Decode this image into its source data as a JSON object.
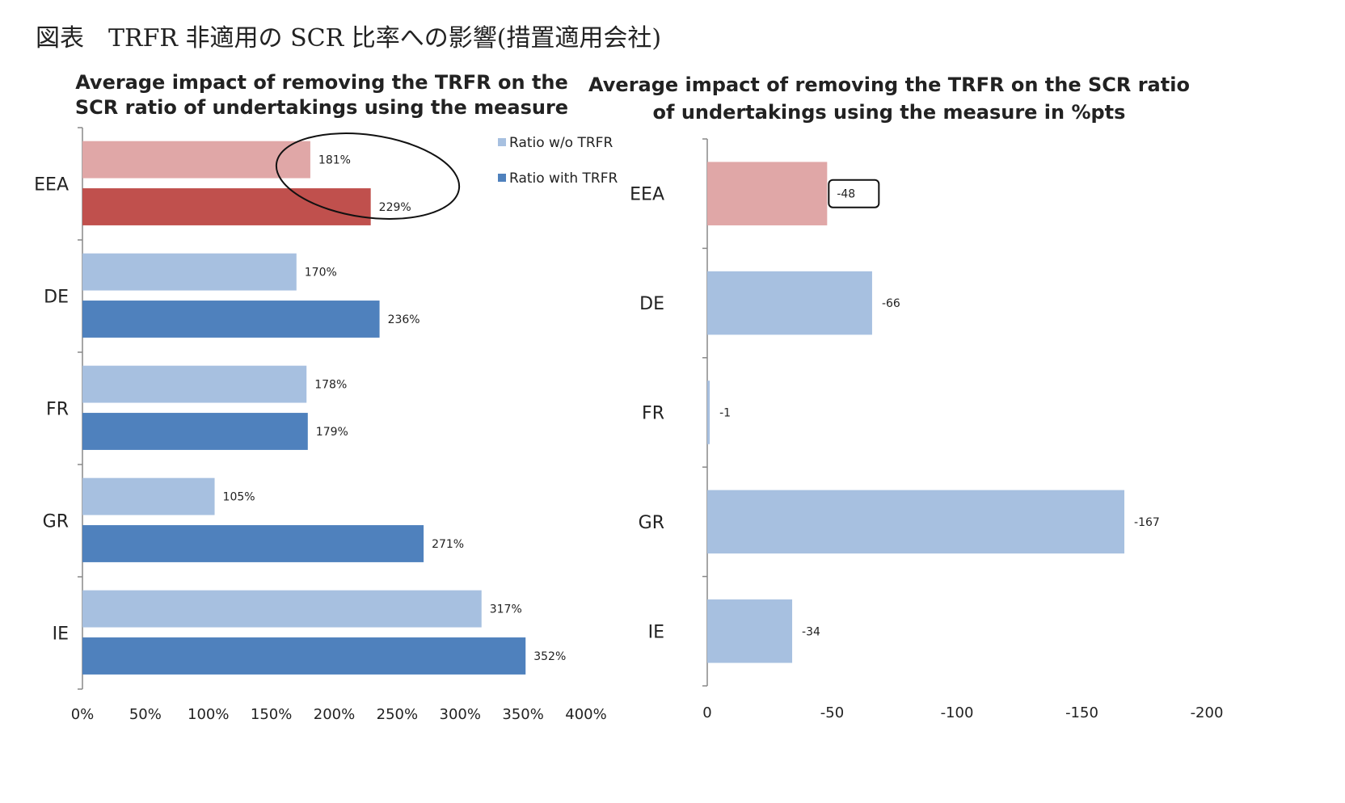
{
  "figure_title": "図表　TRFR 非適用の SCR 比率への影響(措置適用会社)",
  "chart_data": [
    {
      "type": "bar",
      "orientation": "horizontal",
      "title": [
        "Average impact of removing the TRFR on the",
        "SCR ratio of undertakings using the measure"
      ],
      "categories": [
        "EEA",
        "DE",
        "FR",
        "GR",
        "IE"
      ],
      "series": [
        {
          "name": "Ratio w/o TRFR",
          "values": [
            181,
            170,
            178,
            105,
            317
          ],
          "labels": [
            "181%",
            "170%",
            "178%",
            "105%",
            "317%"
          ],
          "color": "#a7c0e0",
          "eea_color": "#e0a7a7"
        },
        {
          "name": "Ratio with TRFR",
          "values": [
            229,
            236,
            179,
            271,
            352
          ],
          "labels": [
            "229%",
            "236%",
            "179%",
            "271%",
            "352%"
          ],
          "color": "#4f81bd",
          "eea_color": "#c0504d"
        }
      ],
      "xlim": [
        0,
        400
      ],
      "xticks": [
        "0%",
        "50%",
        "100%",
        "150%",
        "200%",
        "250%",
        "300%",
        "350%",
        "400%"
      ],
      "legend_position": "top-right",
      "annotation": "ellipse around EEA values"
    },
    {
      "type": "bar",
      "orientation": "horizontal",
      "title": [
        "Average impact of  removing the TRFR on the SCR ratio",
        "of undertakings using the measure in %pts"
      ],
      "categories": [
        "EEA",
        "DE",
        "FR",
        "GR",
        "IE"
      ],
      "values": [
        -48,
        -66,
        -1,
        -167,
        -34
      ],
      "labels": [
        "-48",
        "-66",
        "-1",
        "-167",
        "-34"
      ],
      "color": "#a7c0e0",
      "eea_color": "#e0a7a7",
      "xlim": [
        0,
        -200
      ],
      "xticks": [
        "0",
        "-50",
        "-100",
        "-150",
        "-200"
      ],
      "annotation": "box around EEA label"
    }
  ]
}
